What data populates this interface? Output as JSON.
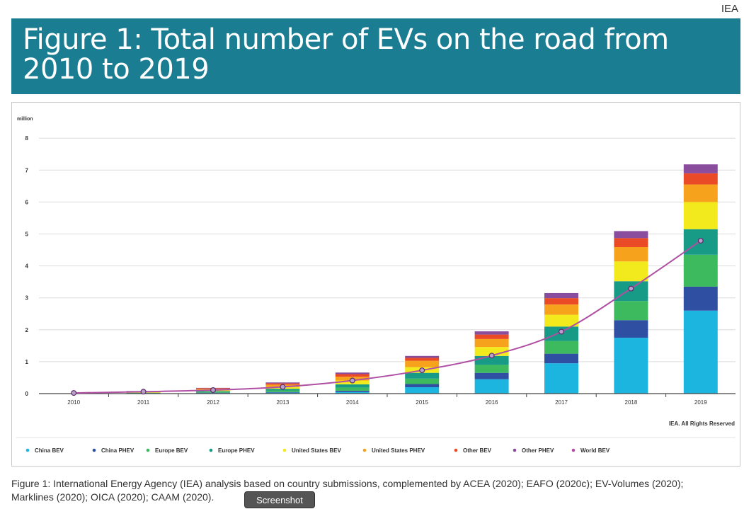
{
  "header": {
    "corner_label": "IEA",
    "title": "Figure 1: Total number of EVs on the road from 2010 to 2019"
  },
  "caption": {
    "text": "Figure 1: International Energy Agency (IEA) analysis based on country submissions, complemented by ACEA (2020); EAFO (2020c); EV-Volumes (2020); Marklines (2020); OICA (2020); CAAM (2020)."
  },
  "overlay": {
    "screenshot_label": "Screenshot"
  },
  "colors": {
    "title_band": "#1a7d92",
    "China BEV": "#1cb5e0",
    "China PHEV": "#2f4fa3",
    "Europe BEV": "#3dba5e",
    "Europe PHEV": "#179a86",
    "United States BEV": "#f2ea1c",
    "United States PHEV": "#f6a21c",
    "Other BEV": "#ea4b26",
    "Other PHEV": "#8a4d9e",
    "World BEV": "#b04fa3"
  },
  "chart_data": {
    "type": "bar",
    "stacked": true,
    "unit_label": "million",
    "credit": "IEA. All Rights Reserved",
    "categories": [
      "2010",
      "2011",
      "2012",
      "2013",
      "2014",
      "2015",
      "2016",
      "2017",
      "2018",
      "2019"
    ],
    "yticks": [
      "0",
      "1",
      "2",
      "3",
      "4",
      "5",
      "6",
      "7",
      "8"
    ],
    "ylim": [
      0,
      8
    ],
    "grid": true,
    "legend_position": "bottom",
    "series": [
      {
        "name": "China BEV",
        "values": [
          0.0,
          0.01,
          0.02,
          0.03,
          0.05,
          0.2,
          0.45,
          0.95,
          1.75,
          2.6
        ]
      },
      {
        "name": "China PHEV",
        "values": [
          0.0,
          0.0,
          0.01,
          0.02,
          0.04,
          0.1,
          0.2,
          0.3,
          0.55,
          0.75
        ]
      },
      {
        "name": "Europe BEV",
        "values": [
          0.0,
          0.01,
          0.03,
          0.05,
          0.1,
          0.17,
          0.25,
          0.4,
          0.6,
          1.0
        ]
      },
      {
        "name": "Europe PHEV",
        "values": [
          0.0,
          0.01,
          0.02,
          0.05,
          0.1,
          0.18,
          0.28,
          0.45,
          0.62,
          0.8
        ]
      },
      {
        "name": "United States BEV",
        "values": [
          0.0,
          0.01,
          0.03,
          0.06,
          0.12,
          0.18,
          0.28,
          0.37,
          0.62,
          0.85
        ]
      },
      {
        "name": "United States PHEV",
        "values": [
          0.0,
          0.02,
          0.04,
          0.07,
          0.12,
          0.2,
          0.25,
          0.32,
          0.45,
          0.55
        ]
      },
      {
        "name": "Other BEV",
        "values": [
          0.0,
          0.01,
          0.02,
          0.04,
          0.08,
          0.09,
          0.14,
          0.2,
          0.28,
          0.35
        ]
      },
      {
        "name": "Other PHEV",
        "values": [
          0.0,
          0.01,
          0.01,
          0.03,
          0.05,
          0.06,
          0.1,
          0.16,
          0.22,
          0.28
        ]
      }
    ],
    "line_series": {
      "name": "World BEV",
      "values": [
        0.02,
        0.06,
        0.11,
        0.21,
        0.41,
        0.73,
        1.19,
        1.94,
        3.29,
        4.79
      ]
    },
    "legend": [
      "China BEV",
      "China PHEV",
      "Europe BEV",
      "Europe PHEV",
      "United States BEV",
      "United States PHEV",
      "Other BEV",
      "Other PHEV",
      "World BEV"
    ]
  }
}
